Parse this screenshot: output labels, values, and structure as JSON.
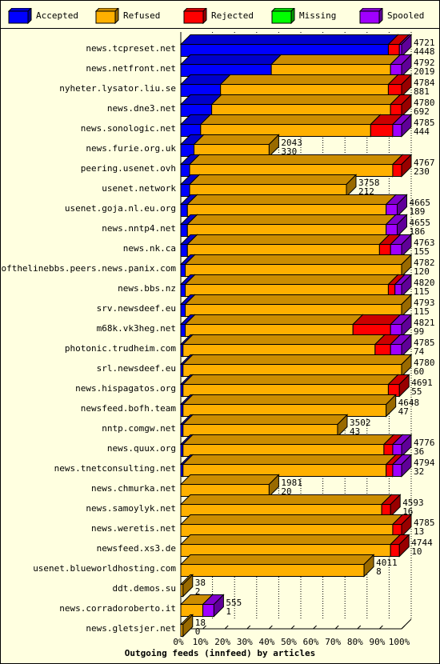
{
  "colors": {
    "background": "#ffffe0",
    "accepted": "#0000ff",
    "refused": "#ffb000",
    "rejected": "#ff0000",
    "missing": "#00ff00",
    "spooled": "#a000ff"
  },
  "legend": [
    {
      "key": "accepted",
      "label": "Accepted"
    },
    {
      "key": "refused",
      "label": "Refused"
    },
    {
      "key": "rejected",
      "label": "Rejected"
    },
    {
      "key": "missing",
      "label": "Missing"
    },
    {
      "key": "spooled",
      "label": "Spooled"
    }
  ],
  "chart_data": {
    "type": "bar",
    "orientation": "horizontal",
    "stacked": true,
    "title": "Outgoing feeds (innfeed) by articles",
    "xlim": [
      0,
      100
    ],
    "x_ticks": [
      "0%",
      "10%",
      "20%",
      "30%",
      "40%",
      "50%",
      "60%",
      "70%",
      "80%",
      "90%",
      "100%"
    ],
    "grid": true,
    "series_order": [
      "accepted",
      "refused",
      "rejected",
      "missing",
      "spooled"
    ],
    "rows": [
      {
        "name": "news.tcpreset.net",
        "total": "4721",
        "accepted_count": "4448",
        "pct": {
          "accepted": 94,
          "refused": 0,
          "rejected": 5,
          "missing": 0,
          "spooled": 1
        }
      },
      {
        "name": "news.netfront.net",
        "total": "4792",
        "accepted_count": "2019",
        "pct": {
          "accepted": 41,
          "refused": 54,
          "rejected": 0,
          "missing": 0,
          "spooled": 5
        }
      },
      {
        "name": "nyheter.lysator.liu.se",
        "total": "4784",
        "accepted_count": "881",
        "pct": {
          "accepted": 18,
          "refused": 76,
          "rejected": 6,
          "missing": 0,
          "spooled": 0
        }
      },
      {
        "name": "news.dne3.net",
        "total": "4780",
        "accepted_count": "692",
        "pct": {
          "accepted": 14,
          "refused": 81,
          "rejected": 5,
          "missing": 0,
          "spooled": 0
        }
      },
      {
        "name": "news.sonologic.net",
        "total": "4785",
        "accepted_count": "444",
        "pct": {
          "accepted": 9,
          "refused": 77,
          "rejected": 10,
          "missing": 0,
          "spooled": 4
        }
      },
      {
        "name": "news.furie.org.uk",
        "total": "2043",
        "accepted_count": "330",
        "pct": {
          "accepted": 6,
          "refused": 34,
          "rejected": 0,
          "missing": 0,
          "spooled": 0
        }
      },
      {
        "name": "peering.usenet.ovh",
        "total": "4767",
        "accepted_count": "230",
        "pct": {
          "accepted": 4,
          "refused": 92,
          "rejected": 4,
          "missing": 0,
          "spooled": 0
        }
      },
      {
        "name": "usenet.network",
        "total": "3758",
        "accepted_count": "212",
        "pct": {
          "accepted": 4,
          "refused": 71,
          "rejected": 0,
          "missing": 0,
          "spooled": 0
        }
      },
      {
        "name": "usenet.goja.nl.eu.org",
        "total": "4665",
        "accepted_count": "189",
        "pct": {
          "accepted": 3,
          "refused": 90,
          "rejected": 0,
          "missing": 0,
          "spooled": 5
        }
      },
      {
        "name": "news.nntp4.net",
        "total": "4655",
        "accepted_count": "186",
        "pct": {
          "accepted": 3,
          "refused": 90,
          "rejected": 0,
          "missing": 0,
          "spooled": 5
        }
      },
      {
        "name": "news.nk.ca",
        "total": "4763",
        "accepted_count": "155",
        "pct": {
          "accepted": 3,
          "refused": 87,
          "rejected": 5,
          "missing": 0,
          "spooled": 5
        }
      },
      {
        "name": "endofthelinebbs.peers.news.panix.com",
        "total": "4782",
        "accepted_count": "120",
        "pct": {
          "accepted": 2,
          "refused": 98,
          "rejected": 0,
          "missing": 0,
          "spooled": 0
        }
      },
      {
        "name": "news.bbs.nz",
        "total": "4820",
        "accepted_count": "115",
        "pct": {
          "accepted": 2,
          "refused": 92,
          "rejected": 3,
          "missing": 0,
          "spooled": 3
        }
      },
      {
        "name": "srv.newsdeef.eu",
        "total": "4793",
        "accepted_count": "115",
        "pct": {
          "accepted": 2,
          "refused": 98,
          "rejected": 0,
          "missing": 0,
          "spooled": 0
        }
      },
      {
        "name": "m68k.vk3heg.net",
        "total": "4821",
        "accepted_count": "99",
        "pct": {
          "accepted": 2,
          "refused": 76,
          "rejected": 17,
          "missing": 0,
          "spooled": 5
        }
      },
      {
        "name": "photonic.trudheim.com",
        "total": "4785",
        "accepted_count": "74",
        "pct": {
          "accepted": 1,
          "refused": 87,
          "rejected": 7,
          "missing": 0,
          "spooled": 5
        }
      },
      {
        "name": "srl.newsdeef.eu",
        "total": "4780",
        "accepted_count": "60",
        "pct": {
          "accepted": 1,
          "refused": 99,
          "rejected": 0,
          "missing": 0,
          "spooled": 0
        }
      },
      {
        "name": "news.hispagatos.org",
        "total": "4691",
        "accepted_count": "55",
        "pct": {
          "accepted": 1,
          "refused": 93,
          "rejected": 5,
          "missing": 0,
          "spooled": 0
        }
      },
      {
        "name": "newsfeed.bofh.team",
        "total": "4648",
        "accepted_count": "47",
        "pct": {
          "accepted": 1,
          "refused": 92,
          "rejected": 0,
          "missing": 0,
          "spooled": 0
        }
      },
      {
        "name": "nntp.comgw.net",
        "total": "3502",
        "accepted_count": "43",
        "pct": {
          "accepted": 1,
          "refused": 70,
          "rejected": 0,
          "missing": 0,
          "spooled": 0
        }
      },
      {
        "name": "news.quux.org",
        "total": "4776",
        "accepted_count": "36",
        "pct": {
          "accepted": 1,
          "refused": 91,
          "rejected": 4,
          "missing": 0,
          "spooled": 4
        }
      },
      {
        "name": "news.tnetconsulting.net",
        "total": "4794",
        "accepted_count": "32",
        "pct": {
          "accepted": 1,
          "refused": 92,
          "rejected": 3,
          "missing": 0,
          "spooled": 4
        }
      },
      {
        "name": "news.chmurka.net",
        "total": "1981",
        "accepted_count": "20",
        "pct": {
          "accepted": 0,
          "refused": 40,
          "rejected": 0,
          "missing": 0,
          "spooled": 0
        }
      },
      {
        "name": "news.samoylyk.net",
        "total": "4593",
        "accepted_count": "16",
        "pct": {
          "accepted": 0,
          "refused": 91,
          "rejected": 4,
          "missing": 0,
          "spooled": 0
        }
      },
      {
        "name": "news.weretis.net",
        "total": "4785",
        "accepted_count": "13",
        "pct": {
          "accepted": 0,
          "refused": 96,
          "rejected": 4,
          "missing": 0,
          "spooled": 0
        }
      },
      {
        "name": "newsfeed.xs3.de",
        "total": "4744",
        "accepted_count": "10",
        "pct": {
          "accepted": 0,
          "refused": 95,
          "rejected": 4,
          "missing": 0,
          "spooled": 0
        }
      },
      {
        "name": "usenet.blueworldhosting.com",
        "total": "4011",
        "accepted_count": "8",
        "pct": {
          "accepted": 0,
          "refused": 83,
          "rejected": 0,
          "missing": 0,
          "spooled": 0
        }
      },
      {
        "name": "ddt.demos.su",
        "total": "38",
        "accepted_count": "2",
        "pct": {
          "accepted": 0,
          "refused": 1,
          "rejected": 0,
          "missing": 0,
          "spooled": 0
        }
      },
      {
        "name": "news.corradoroberto.it",
        "total": "555",
        "accepted_count": "1",
        "pct": {
          "accepted": 0,
          "refused": 10,
          "rejected": 0,
          "missing": 0,
          "spooled": 5
        }
      },
      {
        "name": "news.gletsjer.net",
        "total": "18",
        "accepted_count": "0",
        "pct": {
          "accepted": 0,
          "refused": 1,
          "rejected": 0,
          "missing": 0,
          "spooled": 0
        }
      }
    ]
  }
}
